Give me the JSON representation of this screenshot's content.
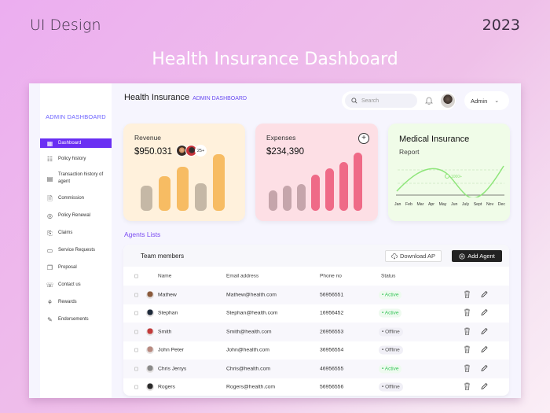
{
  "page": {
    "top_left": "UI Design",
    "top_right": "2023",
    "hero_title": "Health Insurance Dashboard"
  },
  "sidebar": {
    "title": "ADMIN DASHBOARD",
    "items": [
      {
        "label": "Dashboard",
        "icon": "grid-icon",
        "active": true
      },
      {
        "label": "Policy history",
        "icon": "policy-icon"
      },
      {
        "label": "Transaction history of agent",
        "icon": "transaction-icon"
      },
      {
        "label": "Commission",
        "icon": "document-icon"
      },
      {
        "label": "Policy Renewal",
        "icon": "renewal-icon"
      },
      {
        "label": "Claims",
        "icon": "claims-icon"
      },
      {
        "label": "Service Requests",
        "icon": "monitor-icon"
      },
      {
        "label": "Proposal",
        "icon": "book-icon"
      },
      {
        "label": "Contact us",
        "icon": "contact-icon"
      },
      {
        "label": "Rewards",
        "icon": "rewards-icon"
      },
      {
        "label": "Endorsements",
        "icon": "pen-icon"
      }
    ]
  },
  "header": {
    "title": "Health Insurance",
    "subtitle": "ADMIN DASHBOARD",
    "search_placeholder": "Search",
    "user_label": "Admin"
  },
  "cards": {
    "revenue": {
      "label": "Revenue",
      "value": "$950.031",
      "more_badge": "25+"
    },
    "expenses": {
      "label": "Expenses",
      "value": "$234,390"
    },
    "medical": {
      "title": "Medical Insurance",
      "subtitle": "Report",
      "annotation": "1000+"
    }
  },
  "chart_data": [
    {
      "type": "bar",
      "title": "Revenue",
      "categories": [
        "1",
        "2",
        "3",
        "4",
        "5"
      ],
      "values": [
        32,
        44,
        56,
        35,
        72
      ],
      "colors": [
        "#c5b8a6",
        "#f7bc63",
        "#f7bc63",
        "#c5b8a6",
        "#f7bc63"
      ]
    },
    {
      "type": "bar",
      "title": "Expenses",
      "categories": [
        "1",
        "2",
        "3",
        "4",
        "5",
        "6",
        "7"
      ],
      "values": [
        26,
        32,
        34,
        46,
        54,
        62,
        74
      ],
      "colors": [
        "#c5a5ab",
        "#c5a5ab",
        "#c5a5ab",
        "#ef6a87",
        "#ef6a87",
        "#ef6a87",
        "#ef6a87"
      ]
    },
    {
      "type": "line",
      "title": "Medical Insurance Report",
      "categories": [
        "Jan",
        "Feb",
        "Mar",
        "Apr",
        "May",
        "Jun",
        "July",
        "Sept",
        "Nov",
        "Dec"
      ],
      "values": [
        30,
        55,
        70,
        72,
        58,
        25,
        5,
        12,
        45,
        90
      ],
      "annotation": {
        "x": "May",
        "label": "1000+"
      },
      "grid": "dashed"
    }
  ],
  "agents": {
    "section_title": "Agents Lists",
    "table_title": "Team members",
    "download_label": "Download AP",
    "add_label": "Add Agent",
    "columns": [
      "Name",
      "Email address",
      "Phone no",
      "Status"
    ],
    "rows": [
      {
        "name": "Mathew",
        "email": "Mathew@health.com",
        "phone": "56956551",
        "status": "Active",
        "avatar_color": "#8a5a3c"
      },
      {
        "name": "Stephan",
        "email": "Stephan@health.com",
        "phone": "16956452",
        "status": "Active",
        "avatar_color": "#1e2a3a"
      },
      {
        "name": "Smith",
        "email": "Smith@health.com",
        "phone": "26956553",
        "status": "Offline",
        "avatar_color": "#c23a3a"
      },
      {
        "name": "John Peter",
        "email": "John@health.com",
        "phone": "36956554",
        "status": "Offline",
        "avatar_color": "#b88a80"
      },
      {
        "name": "Chris Jerrys",
        "email": "Chris@health.com",
        "phone": "46956555",
        "status": "Active",
        "avatar_color": "#8a8a8a"
      },
      {
        "name": "Rogers",
        "email": "Rogers@health.com",
        "phone": "56956556",
        "status": "Offline",
        "avatar_color": "#2a2a2a"
      }
    ]
  }
}
